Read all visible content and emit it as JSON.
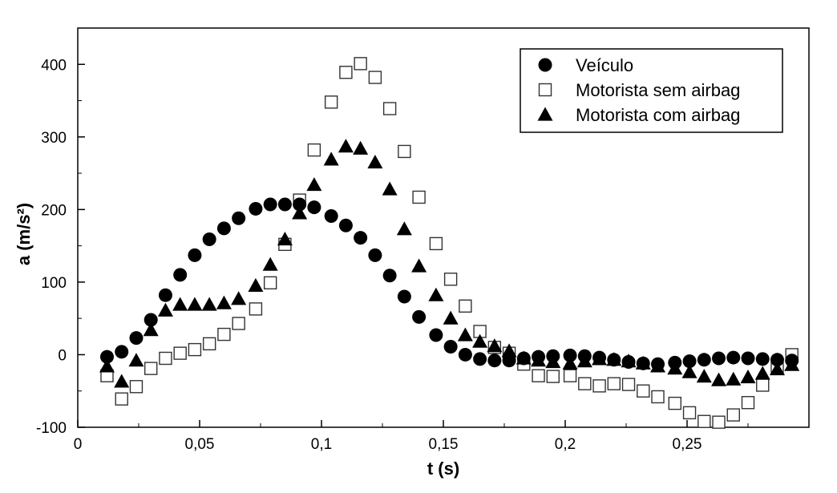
{
  "chart_data": {
    "type": "scatter",
    "title": "",
    "xlabel": "t (s)",
    "ylabel": "a (m/s²)",
    "xlim": [
      0,
      0.3
    ],
    "ylim": [
      -100,
      450
    ],
    "x_ticks": [
      0,
      0.05,
      0.1,
      0.15,
      0.2,
      0.25
    ],
    "x_tick_labels": [
      "0",
      "0,05",
      "0,1",
      "0,15",
      "0,2",
      "0,25"
    ],
    "y_ticks": [
      -100,
      0,
      100,
      200,
      300,
      400
    ],
    "y_tick_labels": [
      "-100",
      "0",
      "100",
      "200",
      "300",
      "400"
    ],
    "grid": false,
    "legend_position": "top-right",
    "series": [
      {
        "name": "Veículo",
        "marker": "circle-filled",
        "color": "#000000",
        "x": [
          0.012,
          0.018,
          0.024,
          0.03,
          0.036,
          0.042,
          0.048,
          0.054,
          0.06,
          0.066,
          0.073,
          0.079,
          0.085,
          0.091,
          0.097,
          0.104,
          0.11,
          0.116,
          0.122,
          0.128,
          0.134,
          0.14,
          0.147,
          0.153,
          0.159,
          0.165,
          0.171,
          0.177,
          0.183,
          0.189,
          0.195,
          0.202,
          0.208,
          0.214,
          0.22,
          0.226,
          0.232,
          0.238,
          0.245,
          0.251,
          0.257,
          0.263,
          0.269,
          0.275,
          0.281,
          0.287,
          0.293
        ],
        "y": [
          -3,
          4,
          23,
          48,
          82,
          110,
          137,
          159,
          174,
          188,
          201,
          207,
          207,
          207,
          203,
          191,
          178,
          161,
          137,
          109,
          80,
          52,
          27,
          11,
          0,
          -6,
          -8,
          -8,
          -5,
          -3,
          -2,
          -1,
          -2,
          -4,
          -7,
          -10,
          -12,
          -13,
          -11,
          -9,
          -7,
          -5,
          -4,
          -5,
          -6,
          -7,
          -8
        ]
      },
      {
        "name": "Motorista sem airbag",
        "marker": "square-open",
        "color": "#000000",
        "x": [
          0.012,
          0.018,
          0.024,
          0.03,
          0.036,
          0.042,
          0.048,
          0.054,
          0.06,
          0.066,
          0.073,
          0.079,
          0.085,
          0.091,
          0.097,
          0.104,
          0.11,
          0.116,
          0.122,
          0.128,
          0.134,
          0.14,
          0.147,
          0.153,
          0.159,
          0.165,
          0.171,
          0.177,
          0.183,
          0.189,
          0.195,
          0.202,
          0.208,
          0.214,
          0.22,
          0.226,
          0.232,
          0.238,
          0.245,
          0.251,
          0.257,
          0.263,
          0.269,
          0.275,
          0.281,
          0.287,
          0.293
        ],
        "y": [
          -29,
          -61,
          -44,
          -19,
          -5,
          2,
          7,
          15,
          28,
          43,
          63,
          99,
          152,
          213,
          282,
          348,
          389,
          401,
          382,
          339,
          280,
          217,
          153,
          104,
          67,
          32,
          10,
          2,
          -13,
          -29,
          -30,
          -29,
          -40,
          -43,
          -40,
          -41,
          -50,
          -58,
          -67,
          -80,
          -92,
          -93,
          -83,
          -66,
          -42,
          -19,
          0
        ]
      },
      {
        "name": "Motorista com airbag",
        "marker": "triangle-filled",
        "color": "#000000",
        "x": [
          0.012,
          0.018,
          0.024,
          0.03,
          0.036,
          0.042,
          0.048,
          0.054,
          0.06,
          0.066,
          0.073,
          0.079,
          0.085,
          0.091,
          0.097,
          0.104,
          0.11,
          0.116,
          0.122,
          0.128,
          0.134,
          0.14,
          0.147,
          0.153,
          0.159,
          0.165,
          0.171,
          0.177,
          0.183,
          0.189,
          0.195,
          0.202,
          0.208,
          0.214,
          0.22,
          0.226,
          0.232,
          0.238,
          0.245,
          0.251,
          0.257,
          0.263,
          0.269,
          0.275,
          0.281,
          0.287,
          0.293
        ],
        "y": [
          -16,
          -37,
          -8,
          34,
          61,
          69,
          69,
          69,
          71,
          77,
          95,
          124,
          159,
          195,
          234,
          269,
          287,
          284,
          265,
          228,
          173,
          122,
          82,
          50,
          27,
          18,
          12,
          5,
          -5,
          -8,
          -10,
          -12,
          -9,
          -6,
          -7,
          -9,
          -12,
          -16,
          -19,
          -24,
          -30,
          -35,
          -34,
          -31,
          -26,
          -20,
          -14
        ]
      }
    ]
  }
}
